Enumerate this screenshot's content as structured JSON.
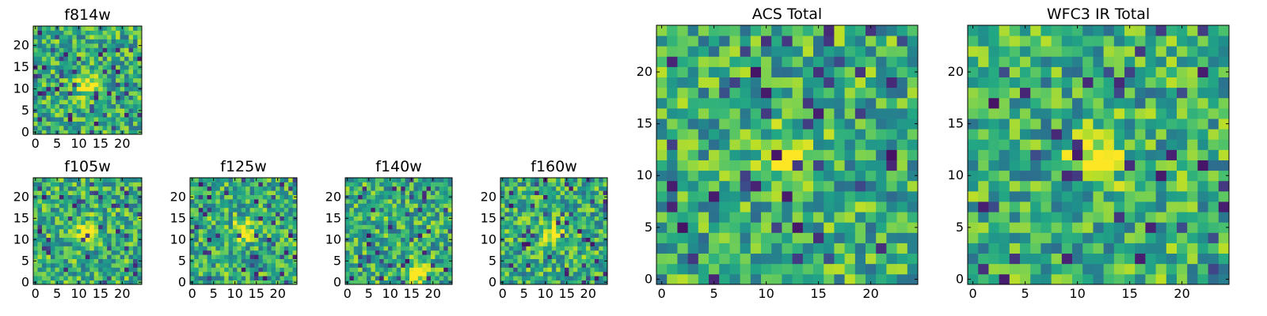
{
  "chart_data": [
    {
      "type": "heatmap",
      "title": "f814w",
      "size": 25,
      "xticks": [
        "0",
        "5",
        "10",
        "15",
        "20"
      ],
      "yticks": [
        "0",
        "5",
        "10",
        "15",
        "20"
      ],
      "hotspot": [
        12,
        11
      ],
      "seed": 814,
      "colormap": "viridis"
    },
    {
      "type": "heatmap",
      "title": "f105w",
      "size": 25,
      "xticks": [
        "0",
        "5",
        "10",
        "15",
        "20"
      ],
      "yticks": [
        "0",
        "5",
        "10",
        "15",
        "20"
      ],
      "hotspot": [
        12,
        12
      ],
      "seed": 105,
      "colormap": "viridis"
    },
    {
      "type": "heatmap",
      "title": "f125w",
      "size": 25,
      "xticks": [
        "0",
        "5",
        "10",
        "15",
        "20"
      ],
      "yticks": [
        "0",
        "5",
        "10",
        "15",
        "20"
      ],
      "hotspot": [
        12,
        12
      ],
      "seed": 125,
      "colormap": "viridis"
    },
    {
      "type": "heatmap",
      "title": "f140w",
      "size": 25,
      "xticks": [
        "0",
        "5",
        "10",
        "15",
        "20"
      ],
      "yticks": [
        "0",
        "5",
        "10",
        "15",
        "20"
      ],
      "hotspot": [
        16,
        2
      ],
      "seed": 140,
      "colormap": "viridis"
    },
    {
      "type": "heatmap",
      "title": "f160w",
      "size": 25,
      "xticks": [
        "0",
        "5",
        "10",
        "15",
        "20"
      ],
      "yticks": [
        "0",
        "5",
        "10",
        "15",
        "20"
      ],
      "hotspot": [
        12,
        11
      ],
      "seed": 160,
      "colormap": "viridis"
    },
    {
      "type": "heatmap",
      "title": "ACS Total",
      "size": 25,
      "xticks": [
        "0",
        "5",
        "10",
        "15",
        "20"
      ],
      "yticks": [
        "0",
        "5",
        "10",
        "15",
        "20"
      ],
      "hotspot": [
        12,
        12
      ],
      "seed": 2001,
      "colormap": "viridis"
    },
    {
      "type": "heatmap",
      "title": "WFC3 IR Total",
      "size": 25,
      "xticks": [
        "0",
        "5",
        "10",
        "15",
        "20"
      ],
      "yticks": [
        "0",
        "5",
        "10",
        "15",
        "20"
      ],
      "hotspot": [
        12,
        12
      ],
      "seed": 3001,
      "colormap": "viridis"
    }
  ]
}
